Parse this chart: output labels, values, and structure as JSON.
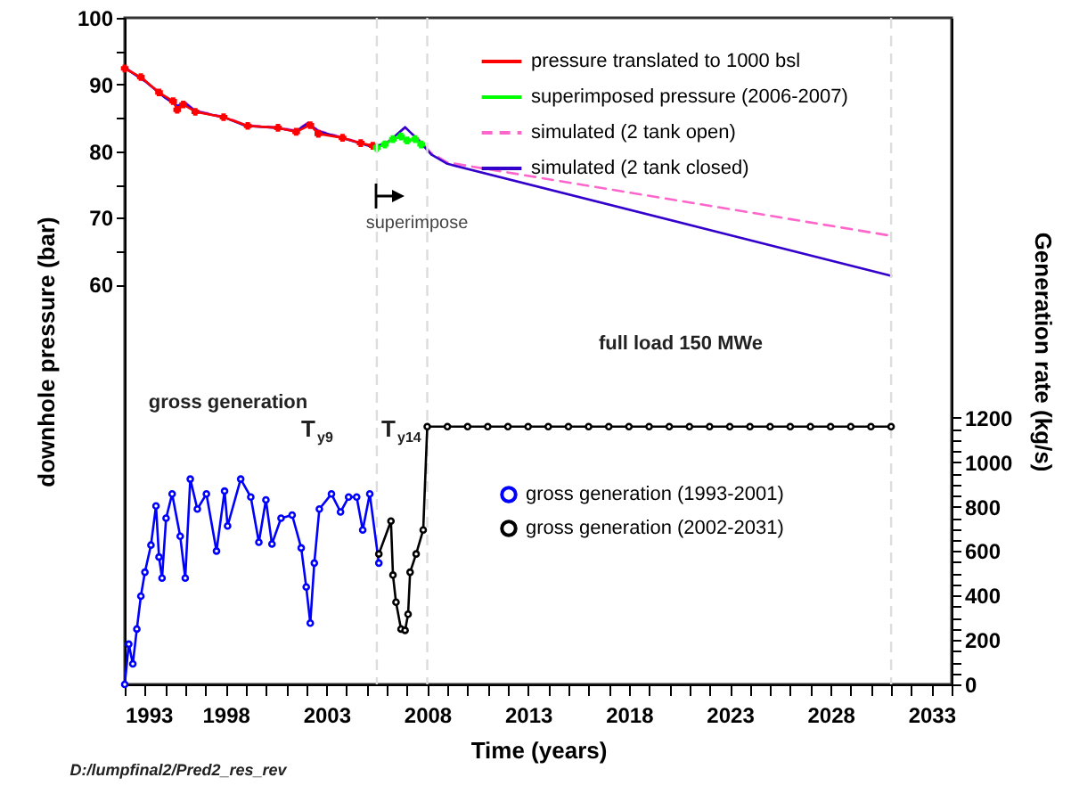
{
  "chart_data": {
    "type": "line",
    "xlabel": "Time (years)",
    "ylabel": "downhole pressure (bar)",
    "y2label": "Generation rate (kg/s)",
    "xlim": [
      1993,
      2034
    ],
    "ylim": [
      0,
      100
    ],
    "y2lim": [
      0,
      3000
    ],
    "xticks": [
      1993,
      {
        "value": 1994,
        "label": null
      },
      {
        "value": 1995,
        "label": null
      },
      {
        "value": 1996,
        "label": null
      },
      {
        "value": 1997,
        "label": null
      },
      1998,
      {
        "value": 1999,
        "label": null
      },
      {
        "value": 2000,
        "label": null
      },
      {
        "value": 2001,
        "label": null
      },
      {
        "value": 2002,
        "label": null
      },
      2003,
      {
        "value": 2004,
        "label": null
      },
      {
        "value": 2005,
        "label": null
      },
      {
        "value": 2006,
        "label": null
      },
      {
        "value": 2007,
        "label": null
      },
      2008,
      {
        "value": 2009,
        "label": null
      },
      {
        "value": 2010,
        "label": null
      },
      {
        "value": 2011,
        "label": null
      },
      {
        "value": 2012,
        "label": null
      },
      2013,
      {
        "value": 2014,
        "label": null
      },
      {
        "value": 2015,
        "label": null
      },
      {
        "value": 2016,
        "label": null
      },
      {
        "value": 2017,
        "label": null
      },
      2018,
      {
        "value": 2019,
        "label": null
      },
      {
        "value": 2020,
        "label": null
      },
      {
        "value": 2021,
        "label": null
      },
      {
        "value": 2022,
        "label": null
      },
      2023,
      {
        "value": 2024,
        "label": null
      },
      {
        "value": 2025,
        "label": null
      },
      {
        "value": 2026,
        "label": null
      },
      {
        "value": 2027,
        "label": null
      },
      2028,
      {
        "value": 2029,
        "label": null
      },
      {
        "value": 2030,
        "label": null
      },
      {
        "value": 2031,
        "label": null
      },
      {
        "value": 2032,
        "label": null
      },
      2033,
      {
        "value": 2034,
        "label": null
      }
    ],
    "yticks": [
      60,
      {
        "value": 65,
        "label": null
      },
      70,
      {
        "value": 75,
        "label": null
      },
      80,
      {
        "value": 85,
        "label": null
      },
      90,
      {
        "value": 95,
        "label": null
      },
      100
    ],
    "y2ticks": [
      0,
      {
        "value": 50,
        "label": null
      },
      {
        "value": 100,
        "label": null
      },
      {
        "value": 150,
        "label": null
      },
      200,
      {
        "value": 250,
        "label": null
      },
      {
        "value": 300,
        "label": null
      },
      {
        "value": 350,
        "label": null
      },
      400,
      {
        "value": 450,
        "label": null
      },
      {
        "value": 500,
        "label": null
      },
      {
        "value": 550,
        "label": null
      },
      600,
      {
        "value": 650,
        "label": null
      },
      {
        "value": 700,
        "label": null
      },
      {
        "value": 750,
        "label": null
      },
      800,
      {
        "value": 850,
        "label": null
      },
      {
        "value": 900,
        "label": null
      },
      {
        "value": 950,
        "label": null
      },
      1000,
      {
        "value": 1050,
        "label": null
      },
      {
        "value": 1100,
        "label": null
      },
      {
        "value": 1150,
        "label": null
      },
      1200
    ],
    "grid": false,
    "legend": "top right",
    "series": [
      {
        "name": "pressure translated to 1000 bsl",
        "color": "#ff0000",
        "marker": "cross",
        "line_style": "solid",
        "x": [
          1993.0,
          1993.8,
          1994.7,
          1995.4,
          1995.6,
          1995.9,
          1996.5,
          1997.9,
          1999.1,
          2000.6,
          2001.5,
          2002.2,
          2002.6,
          2003.8,
          2004.7,
          2005.3
        ],
        "values": [
          92.4,
          91.1,
          88.8,
          87.5,
          86.2,
          87.0,
          85.9,
          85.1,
          83.8,
          83.5,
          82.9,
          83.9,
          82.6,
          82.0,
          81.2,
          80.8
        ]
      },
      {
        "name": "superimposed pressure (2006-2007)",
        "color": "#00ff00",
        "marker": "cross",
        "line_style": "solid",
        "x": [
          2005.5,
          2005.9,
          2006.3,
          2006.7,
          2007.0,
          2007.4,
          2007.7
        ],
        "values": [
          80.5,
          81.0,
          81.8,
          82.2,
          81.6,
          81.8,
          81.0
        ]
      },
      {
        "name": "simulated (2 tank open)",
        "color": "#ff66cc",
        "marker": "none",
        "line_style": "dashed",
        "x": [
          1993.0,
          1994.0,
          1995.0,
          1995.6,
          1996.0,
          1996.5,
          1998.0,
          1999.0,
          2000.5,
          2001.5,
          2002.1,
          2002.6,
          2004.0,
          2005.3,
          2006.0,
          2006.9,
          2007.6,
          2008.2,
          2009.0,
          2031.0
        ],
        "values": [
          92.6,
          90.6,
          88.1,
          86.9,
          87.3,
          86.1,
          85.1,
          83.9,
          83.6,
          83.1,
          84.3,
          83.1,
          81.9,
          80.7,
          81.3,
          83.5,
          81.7,
          79.7,
          78.3,
          67.3
        ]
      },
      {
        "name": "simulated (2 tank closed)",
        "color": "#3300cc",
        "marker": "none",
        "line_style": "solid",
        "x": [
          1993.0,
          1994.0,
          1995.0,
          1995.6,
          1996.0,
          1996.5,
          1998.0,
          1999.0,
          2000.5,
          2001.5,
          2002.1,
          2002.6,
          2004.0,
          2005.3,
          2006.0,
          2006.9,
          2007.6,
          2008.2,
          2009.0,
          2031.0
        ],
        "values": [
          92.5,
          90.5,
          88.0,
          86.8,
          87.2,
          86.0,
          85.0,
          83.8,
          83.5,
          83.0,
          84.2,
          83.0,
          81.8,
          80.6,
          81.2,
          83.6,
          81.5,
          79.5,
          78.1,
          61.3
        ]
      },
      {
        "name": "gross generation (1993-2001)",
        "color": "#0000ff",
        "marker": "circle",
        "line_style": "solid",
        "axis": "y2",
        "x": [
          1993.0,
          1993.2,
          1993.4,
          1993.6,
          1993.8,
          1994.0,
          1994.3,
          1994.55,
          1994.7,
          1994.85,
          1995.05,
          1995.35,
          1995.75,
          1996.0,
          1996.25,
          1996.6,
          1997.05,
          1997.55,
          1997.95,
          1998.1,
          1998.75,
          1999.25,
          1999.65,
          2000.0,
          2000.3,
          2000.75,
          2001.3,
          2001.75,
          2002.0,
          2002.2,
          2002.4,
          2002.65,
          2003.25,
          2003.7,
          2004.1,
          2004.5,
          2004.8,
          2005.15,
          2005.6
        ],
        "values": [
          0,
          181,
          92,
          249,
          397,
          505,
          627,
          803,
          573,
          478,
          748,
          857,
          667,
          478,
          924,
          789,
          857,
          600,
          870,
          713,
          924,
          843,
          640,
          830,
          632,
          748,
          762,
          614,
          438,
          276,
          546,
          789,
          857,
          776,
          843,
          843,
          695,
          857,
          546
        ]
      },
      {
        "name": "gross generation (2002-2031)",
        "color": "#000000",
        "marker": "circle",
        "line_style": "solid",
        "axis": "y2",
        "x": [
          2005.6,
          2006.2,
          2006.3,
          2006.45,
          2006.7,
          2006.9,
          2007.05,
          2007.15,
          2007.45,
          2007.8,
          2008,
          2009,
          2010,
          2011,
          2012,
          2013,
          2014,
          2015,
          2016,
          2017,
          2018,
          2019,
          2020,
          2021,
          2022,
          2023,
          2024,
          2025,
          2026,
          2027,
          2028,
          2029,
          2030,
          2031
        ],
        "values": [
          587,
          735,
          492,
          370,
          249,
          243,
          316,
          505,
          587,
          695,
          1160,
          1160,
          1160,
          1160,
          1160,
          1160,
          1160,
          1160,
          1160,
          1160,
          1160,
          1160,
          1160,
          1160,
          1160,
          1160,
          1160,
          1160,
          1160,
          1160,
          1160,
          1160,
          1160,
          1160
        ]
      }
    ],
    "ref_lines": [
      {
        "axis": "x",
        "value": 2005.5,
        "color": "#dddddd",
        "line_style": "dashed"
      },
      {
        "axis": "x",
        "value": 2008,
        "color": "#dddddd",
        "line_style": "dashed"
      },
      {
        "axis": "x",
        "value": 2031,
        "color": "#dddddd",
        "line_style": "dashed"
      }
    ],
    "annotations": [
      "superimpose",
      "gross generation",
      "T$_{y9}$",
      "T$_{y14}$",
      "full load 150 MWe",
      "D:/lumpfinal2/Pred2_res_rev"
    ]
  }
}
